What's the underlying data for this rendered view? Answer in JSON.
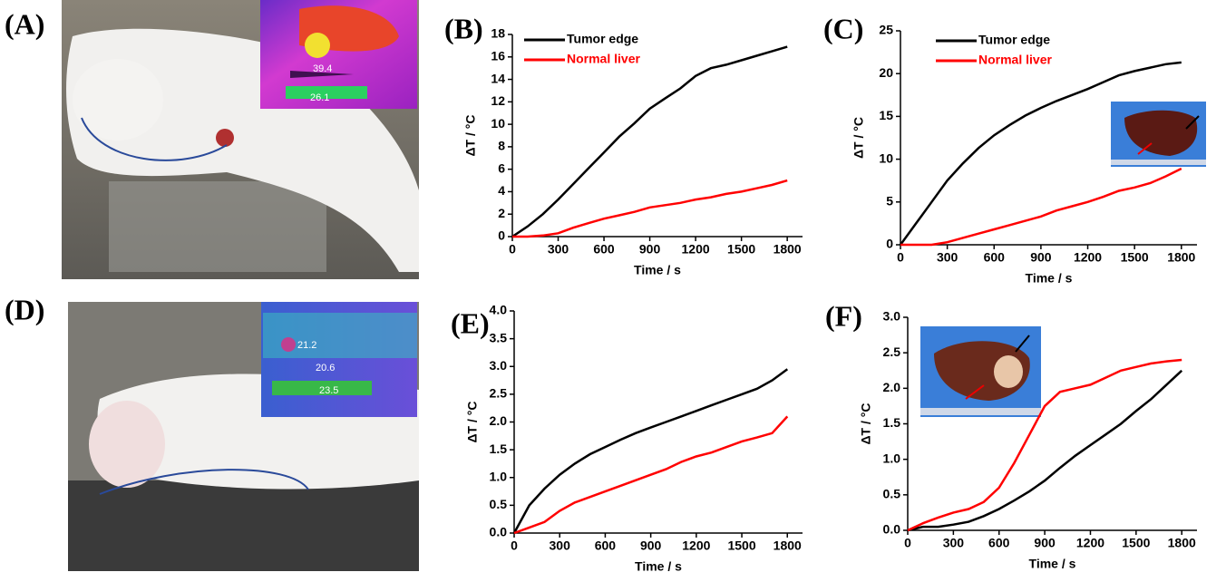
{
  "panel_labels": [
    "(A)",
    "(D)"
  ],
  "thermal_readings": {
    "A": [
      "39.4",
      "26.1"
    ],
    "D": [
      "21.2",
      "20.6",
      "23.5"
    ]
  },
  "chart_data": [
    {
      "type": "line",
      "panel_label": "(B)",
      "x_label": "Time / s",
      "y_label": "ΔT / °C",
      "x": [
        0,
        100,
        200,
        300,
        400,
        500,
        600,
        700,
        800,
        900,
        1000,
        1100,
        1200,
        1300,
        1400,
        1500,
        1600,
        1700,
        1800
      ],
      "xlim": [
        0,
        1900
      ],
      "xticks": [
        0,
        300,
        600,
        900,
        1200,
        1500,
        1800
      ],
      "ylim": [
        0,
        18
      ],
      "yticks": [
        0,
        2,
        4,
        6,
        8,
        10,
        12,
        14,
        16,
        18
      ],
      "legend": "top-left",
      "series": [
        {
          "name": "Tumor edge",
          "color": "#000000",
          "values": [
            0,
            0.9,
            2,
            3.3,
            4.7,
            6.1,
            7.5,
            8.9,
            10.1,
            11.4,
            12.3,
            13.2,
            14.3,
            15,
            15.3,
            15.7,
            16.1,
            16.5,
            16.9
          ]
        },
        {
          "name": "Normal liver",
          "color": "#ff0000",
          "values": [
            0,
            0,
            0.1,
            0.3,
            0.8,
            1.2,
            1.6,
            1.9,
            2.2,
            2.6,
            2.8,
            3,
            3.3,
            3.5,
            3.8,
            4,
            4.3,
            4.6,
            5
          ]
        }
      ]
    },
    {
      "type": "line",
      "panel_label": "(C)",
      "x_label": "Time / s",
      "y_label": "ΔT / °C",
      "x": [
        0,
        100,
        200,
        300,
        400,
        500,
        600,
        700,
        800,
        900,
        1000,
        1100,
        1200,
        1300,
        1400,
        1500,
        1600,
        1700,
        1800
      ],
      "xlim": [
        0,
        1900
      ],
      "xticks": [
        0,
        300,
        600,
        900,
        1200,
        1500,
        1800
      ],
      "ylim": [
        0,
        25
      ],
      "yticks": [
        0,
        5,
        10,
        15,
        20,
        25
      ],
      "legend": "top-left",
      "series": [
        {
          "name": "Tumor edge",
          "color": "#000000",
          "values": [
            0,
            2.5,
            5,
            7.5,
            9.5,
            11.3,
            12.8,
            14,
            15.1,
            16,
            16.8,
            17.5,
            18.2,
            19,
            19.8,
            20.3,
            20.7,
            21.1,
            21.3
          ]
        },
        {
          "name": "Normal liver",
          "color": "#ff0000",
          "values": [
            0,
            0,
            0,
            0.3,
            0.8,
            1.3,
            1.8,
            2.3,
            2.8,
            3.3,
            4,
            4.5,
            5,
            5.6,
            6.3,
            6.7,
            7.2,
            8,
            8.9
          ]
        }
      ]
    },
    {
      "type": "line",
      "panel_label": "(E)",
      "x_label": "Time / s",
      "y_label": "ΔT / °C",
      "x": [
        0,
        100,
        200,
        300,
        400,
        500,
        600,
        700,
        800,
        900,
        1000,
        1100,
        1200,
        1300,
        1400,
        1500,
        1600,
        1700,
        1800
      ],
      "xlim": [
        0,
        1900
      ],
      "xticks": [
        0,
        300,
        600,
        900,
        1200,
        1500,
        1800
      ],
      "ylim": [
        0,
        4
      ],
      "yticks": [
        {
          "value": 0,
          "label": "0.0"
        },
        {
          "value": 0.5,
          "label": "0.5"
        },
        {
          "value": 1,
          "label": "1.0"
        },
        {
          "value": 1.5,
          "label": "1.5"
        },
        {
          "value": 2,
          "label": "2.0"
        },
        {
          "value": 2.5,
          "label": "2.5"
        },
        {
          "value": 3,
          "label": "3.0"
        },
        {
          "value": 3.5,
          "label": "3.5"
        },
        {
          "value": 4,
          "label": "4.0"
        }
      ],
      "series": [
        {
          "color": "#000000",
          "values": [
            0,
            0.5,
            0.8,
            1.05,
            1.25,
            1.42,
            1.55,
            1.68,
            1.8,
            1.9,
            2,
            2.1,
            2.2,
            2.3,
            2.4,
            2.5,
            2.6,
            2.75,
            2.95
          ]
        },
        {
          "color": "#ff0000",
          "values": [
            0,
            0.1,
            0.2,
            0.4,
            0.55,
            0.65,
            0.75,
            0.85,
            0.95,
            1.05,
            1.15,
            1.28,
            1.38,
            1.45,
            1.55,
            1.65,
            1.72,
            1.8,
            2.1
          ]
        }
      ]
    },
    {
      "type": "line",
      "panel_label": "(F)",
      "x_label": "Time / s",
      "y_label": "ΔT / °C",
      "x": [
        0,
        100,
        200,
        300,
        400,
        500,
        600,
        700,
        800,
        900,
        1000,
        1100,
        1200,
        1300,
        1400,
        1500,
        1600,
        1700,
        1800
      ],
      "xlim": [
        0,
        1900
      ],
      "xticks": [
        0,
        300,
        600,
        900,
        1200,
        1500,
        1800
      ],
      "ylim": [
        0,
        3
      ],
      "yticks": [
        {
          "value": 0,
          "label": "0.0"
        },
        {
          "value": 0.5,
          "label": "0.5"
        },
        {
          "value": 1,
          "label": "1.0"
        },
        {
          "value": 1.5,
          "label": "1.5"
        },
        {
          "value": 2,
          "label": "2.0"
        },
        {
          "value": 2.5,
          "label": "2.5"
        },
        {
          "value": 3,
          "label": "3.0"
        }
      ],
      "series": [
        {
          "color": "#000000",
          "values": [
            0,
            0.05,
            0.05,
            0.08,
            0.12,
            0.2,
            0.3,
            0.42,
            0.55,
            0.7,
            0.88,
            1.05,
            1.2,
            1.35,
            1.5,
            1.68,
            1.85,
            2.05,
            2.25
          ]
        },
        {
          "color": "#ff0000",
          "values": [
            0,
            0.1,
            0.18,
            0.25,
            0.3,
            0.4,
            0.6,
            0.95,
            1.35,
            1.75,
            1.95,
            2,
            2.05,
            2.15,
            2.25,
            2.3,
            2.35,
            2.38,
            2.4
          ]
        }
      ]
    }
  ]
}
